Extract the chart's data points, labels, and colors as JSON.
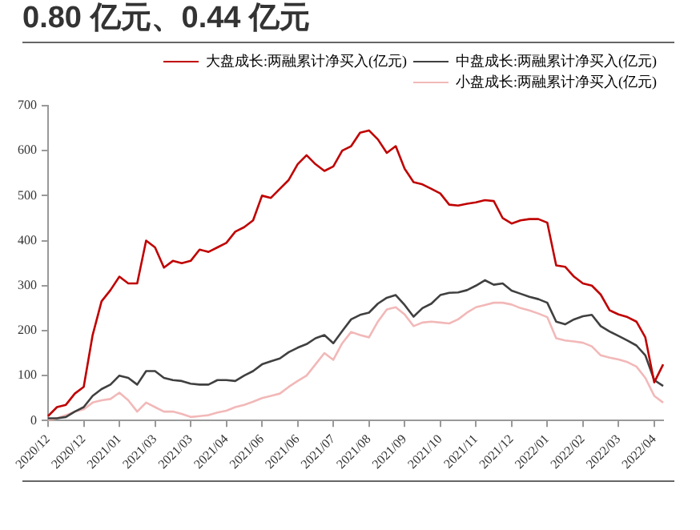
{
  "chart_data": {
    "type": "line",
    "title": "0.80 亿元、0.44 亿元",
    "categories": [
      "2020/12",
      null,
      null,
      null,
      "2020/12",
      null,
      null,
      null,
      "2021/01",
      null,
      null,
      null,
      "2021/03",
      null,
      null,
      null,
      "2021/03",
      null,
      null,
      null,
      "2021/04",
      null,
      null,
      null,
      "2021/06",
      null,
      null,
      null,
      "2021/06",
      null,
      null,
      null,
      "2021/07",
      null,
      null,
      null,
      "2021/08",
      null,
      null,
      null,
      "2021/09",
      null,
      null,
      null,
      "2021/10",
      null,
      null,
      null,
      "2021/11",
      null,
      null,
      null,
      "2021/12",
      null,
      null,
      null,
      "2022/01",
      null,
      null,
      null,
      "2022/02",
      null,
      null,
      null,
      "2022/03",
      null,
      null,
      null,
      "2022/04",
      null
    ],
    "series": [
      {
        "name": "大盘成长:两融累计净买入(亿元)",
        "color": "#c00000",
        "values": [
          10,
          30,
          35,
          60,
          75,
          190,
          265,
          290,
          320,
          305,
          305,
          400,
          385,
          340,
          355,
          350,
          355,
          380,
          375,
          385,
          395,
          420,
          430,
          445,
          500,
          495,
          515,
          535,
          570,
          590,
          570,
          555,
          565,
          600,
          610,
          640,
          645,
          625,
          595,
          610,
          560,
          530,
          525,
          515,
          505,
          480,
          478,
          482,
          485,
          490,
          488,
          450,
          438,
          445,
          448,
          448,
          440,
          345,
          342,
          320,
          305,
          300,
          280,
          245,
          236,
          230,
          220,
          185,
          85,
          125
        ]
      },
      {
        "name": "中盘成长:两融累计净买入(亿元)",
        "color": "#404040",
        "values": [
          5,
          5,
          8,
          20,
          30,
          55,
          70,
          80,
          100,
          95,
          80,
          110,
          110,
          95,
          90,
          88,
          82,
          80,
          80,
          90,
          90,
          88,
          100,
          110,
          125,
          132,
          138,
          152,
          162,
          170,
          183,
          190,
          172,
          199,
          225,
          235,
          240,
          260,
          273,
          279,
          257,
          231,
          250,
          260,
          279,
          284,
          285,
          290,
          300,
          312,
          302,
          305,
          289,
          282,
          275,
          270,
          262,
          220,
          214,
          225,
          232,
          235,
          210,
          198,
          188,
          178,
          167,
          145,
          90,
          77
        ]
      },
      {
        "name": "小盘成长:两融累计净买入(亿元)",
        "color": "#f2b8b8",
        "values": [
          0,
          5,
          12,
          20,
          25,
          40,
          45,
          48,
          62,
          45,
          20,
          40,
          30,
          20,
          20,
          15,
          8,
          10,
          12,
          18,
          22,
          30,
          35,
          42,
          50,
          55,
          60,
          75,
          88,
          100,
          125,
          150,
          135,
          172,
          197,
          190,
          185,
          220,
          247,
          252,
          236,
          210,
          218,
          220,
          218,
          216,
          225,
          240,
          252,
          257,
          262,
          262,
          258,
          250,
          245,
          238,
          230,
          183,
          178,
          176,
          173,
          165,
          145,
          140,
          136,
          130,
          120,
          95,
          55,
          40
        ]
      }
    ],
    "ylim": [
      0,
      700
    ],
    "yticks": [
      0,
      100,
      200,
      300,
      400,
      500,
      600,
      700
    ],
    "grid": false,
    "legend": "top",
    "marker": "none",
    "line_style": "solid"
  }
}
